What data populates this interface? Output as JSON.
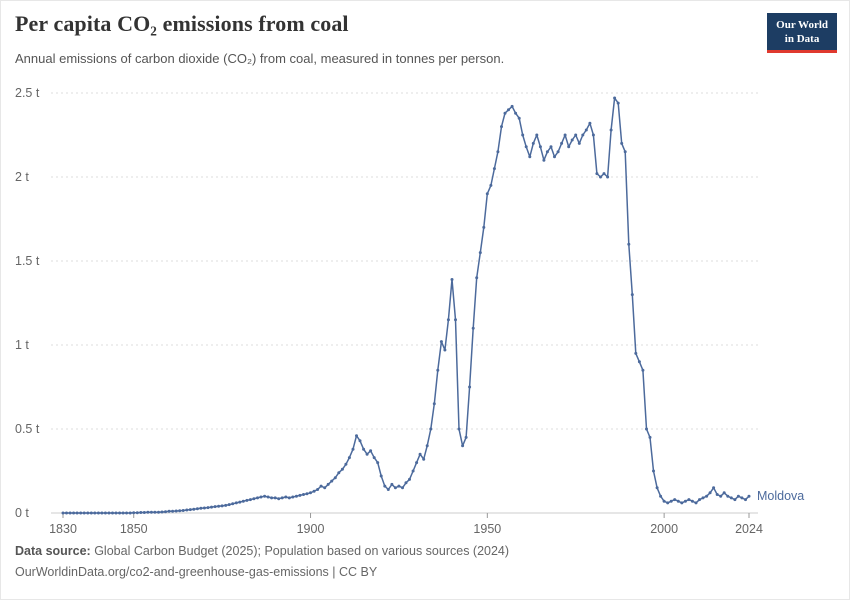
{
  "header": {
    "title": "Per capita CO₂ emissions from coal",
    "subtitle": "Annual emissions of carbon dioxide (CO₂) from coal, measured in tonnes per person.",
    "logo": {
      "line1": "Our World",
      "line2": "in Data"
    }
  },
  "footer": {
    "source_label": "Data source:",
    "source_text": " Global Carbon Budget (2025); Population based on various sources (2024)",
    "link_text": "OurWorldinData.org/co2-and-greenhouse-gas-emissions | CC BY"
  },
  "colors": {
    "line_blue": "#4c6a9c",
    "logo_navy": "#1d3d63",
    "logo_red": "#e0392e",
    "grid_gray": "#dddddd",
    "tick_text_gray": "#666666"
  },
  "chart_data": {
    "type": "line",
    "title": "Per capita CO₂ emissions from coal",
    "series_name": "Moldova",
    "unit": "tonnes per person",
    "x_range": [
      1830,
      2024
    ],
    "x_ticks": [
      1830,
      1850,
      1900,
      1950,
      2000,
      2024
    ],
    "y_ticks": [
      0,
      0.5,
      1,
      1.5,
      2,
      2.5
    ],
    "y_tick_labels": [
      "0 t",
      "0.5 t",
      "1 t",
      "1.5 t",
      "2 t",
      "2.5 t"
    ],
    "ylim": [
      0,
      2.5
    ],
    "grid": "dashed-horizontal",
    "legend_position": "end-of-line",
    "line_color": "#4c6a9c",
    "values": [
      0,
      0,
      0,
      0,
      0,
      0,
      0,
      0,
      0,
      0,
      0,
      0,
      0,
      0,
      0,
      0,
      0,
      0,
      0,
      0,
      0.002,
      0.002,
      0.003,
      0.003,
      0.004,
      0.004,
      0.005,
      0.005,
      0.006,
      0.008,
      0.01,
      0.01,
      0.012,
      0.013,
      0.015,
      0.018,
      0.02,
      0.022,
      0.025,
      0.028,
      0.03,
      0.032,
      0.035,
      0.038,
      0.04,
      0.042,
      0.045,
      0.05,
      0.055,
      0.06,
      0.065,
      0.07,
      0.075,
      0.08,
      0.085,
      0.09,
      0.095,
      0.1,
      0.095,
      0.09,
      0.09,
      0.085,
      0.09,
      0.095,
      0.09,
      0.095,
      0.1,
      0.105,
      0.11,
      0.115,
      0.12,
      0.13,
      0.14,
      0.16,
      0.15,
      0.17,
      0.19,
      0.21,
      0.24,
      0.26,
      0.29,
      0.33,
      0.38,
      0.46,
      0.43,
      0.38,
      0.35,
      0.37,
      0.33,
      0.3,
      0.22,
      0.16,
      0.14,
      0.17,
      0.15,
      0.16,
      0.15,
      0.18,
      0.2,
      0.25,
      0.3,
      0.35,
      0.32,
      0.4,
      0.5,
      0.65,
      0.85,
      1.02,
      0.97,
      1.15,
      1.39,
      1.15,
      0.5,
      0.4,
      0.45,
      0.75,
      1.1,
      1.4,
      1.55,
      1.7,
      1.9,
      1.95,
      2.05,
      2.15,
      2.3,
      2.38,
      2.4,
      2.42,
      2.38,
      2.35,
      2.25,
      2.18,
      2.12,
      2.2,
      2.25,
      2.18,
      2.1,
      2.15,
      2.18,
      2.12,
      2.15,
      2.2,
      2.25,
      2.18,
      2.22,
      2.25,
      2.2,
      2.25,
      2.28,
      2.32,
      2.25,
      2.02,
      2.0,
      2.02,
      2.0,
      2.28,
      2.47,
      2.44,
      2.2,
      2.15,
      1.6,
      1.3,
      0.95,
      0.9,
      0.85,
      0.5,
      0.45,
      0.25,
      0.15,
      0.1,
      0.07,
      0.06,
      0.07,
      0.08,
      0.07,
      0.06,
      0.07,
      0.08,
      0.07,
      0.06,
      0.08,
      0.09,
      0.1,
      0.12,
      0.15,
      0.11,
      0.1,
      0.12,
      0.1,
      0.09,
      0.08,
      0.1,
      0.09,
      0.08,
      0.1
    ]
  }
}
